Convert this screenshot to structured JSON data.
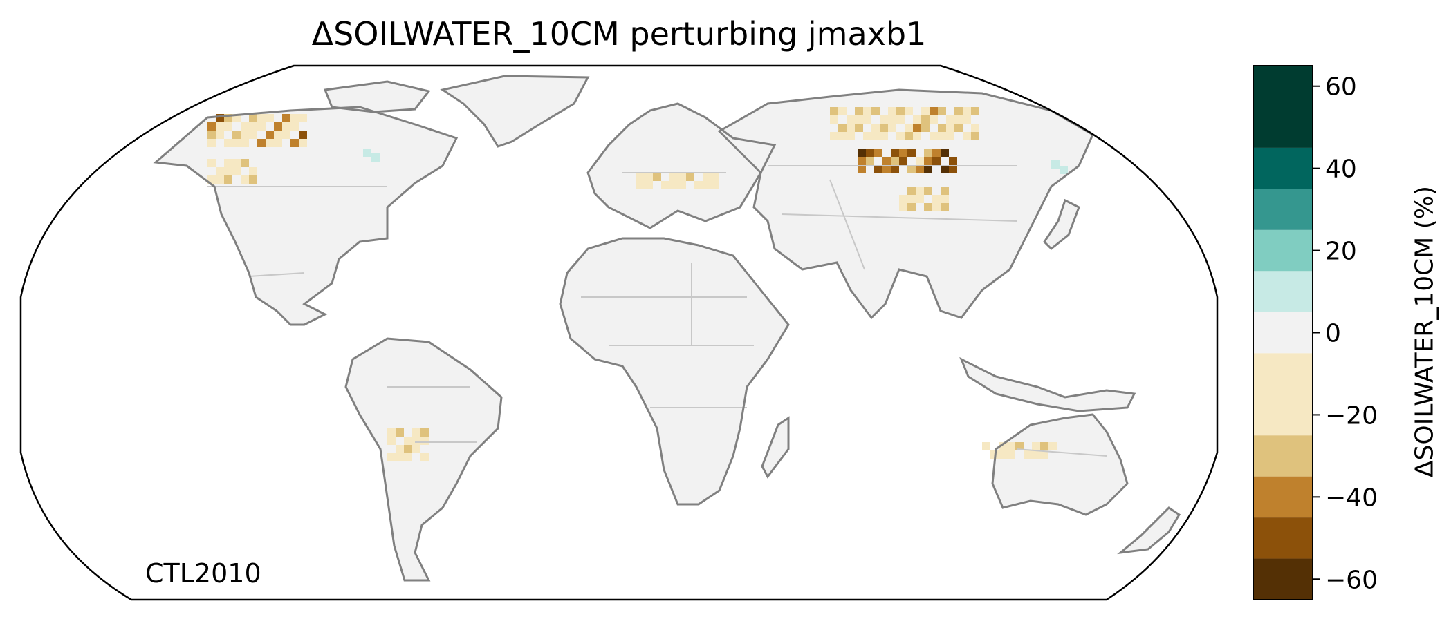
{
  "title": "ΔSOILWATER_10CM perturbing jmaxb1",
  "panel_label": "CTL2010",
  "colorbar": {
    "label": "ΔSOILWATER_10CM (%)",
    "ticks": [
      "60",
      "40",
      "20",
      "0",
      "−20",
      "−40",
      "−60"
    ],
    "tick_values": [
      60,
      40,
      20,
      0,
      -20,
      -40,
      -60
    ],
    "range": [
      -65,
      65
    ],
    "bins": [
      {
        "from": -65,
        "to": -55,
        "color": "#543005"
      },
      {
        "from": -55,
        "to": -45,
        "color": "#8c510a"
      },
      {
        "from": -45,
        "to": -35,
        "color": "#bf812d"
      },
      {
        "from": -35,
        "to": -25,
        "color": "#dfc27d"
      },
      {
        "from": -25,
        "to": -5,
        "color": "#f6e8c3"
      },
      {
        "from": -5,
        "to": 5,
        "color": "#f2f2f2"
      },
      {
        "from": 5,
        "to": 15,
        "color": "#c7eae5"
      },
      {
        "from": 15,
        "to": 25,
        "color": "#80cdc1"
      },
      {
        "from": 25,
        "to": 35,
        "color": "#35978f"
      },
      {
        "from": 35,
        "to": 45,
        "color": "#01665e"
      },
      {
        "from": 45,
        "to": 65,
        "color": "#003c30"
      }
    ]
  },
  "colors": {
    "land": "#f2f2f2",
    "coastline": "#808080",
    "borders": "#c8c8c8"
  }
}
